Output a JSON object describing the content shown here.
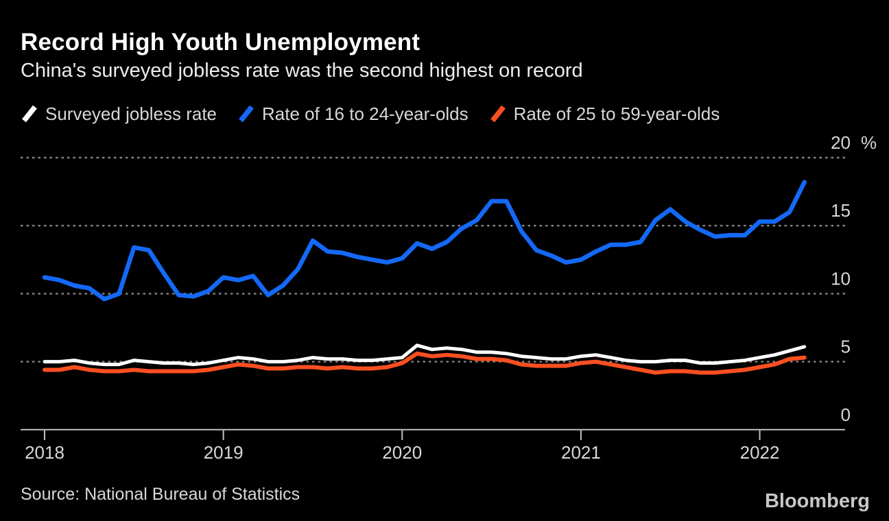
{
  "header": {
    "title": "Record High Youth Unemployment",
    "subtitle": "China's surveyed jobless rate was the second highest on record"
  },
  "legend": {
    "items": [
      {
        "label": "Surveyed jobless rate",
        "color": "#ffffff"
      },
      {
        "label": "Rate of 16 to 24-year-olds",
        "color": "#1469f6"
      },
      {
        "label": "Rate of 25 to 59-year-olds",
        "color": "#fa4f21"
      }
    ]
  },
  "chart_data": {
    "type": "line",
    "title": "Record High Youth Unemployment",
    "subtitle": "China's surveyed jobless rate was the second highest on record",
    "x_start": "2018-01",
    "x_end": "2022-04",
    "x_frequency": "monthly",
    "x_tick_labels": [
      "2018",
      "2019",
      "2020",
      "2021",
      "2022"
    ],
    "x_tick_month_index": [
      0,
      12,
      24,
      36,
      48
    ],
    "ylim": [
      0,
      20
    ],
    "y_ticks": [
      0,
      5,
      10,
      15,
      20
    ],
    "unit": "%",
    "grid": "horizontal-dotted",
    "legend_position": "top",
    "background": "#000000",
    "grid_color": "#858585",
    "axis_color": "#c3c3c3",
    "series": [
      {
        "name": "Surveyed jobless rate",
        "color": "#ffffff",
        "values": [
          5.0,
          5.0,
          5.1,
          4.9,
          4.8,
          4.8,
          5.1,
          5.0,
          4.9,
          4.9,
          4.8,
          4.9,
          5.1,
          5.3,
          5.2,
          5.0,
          5.0,
          5.1,
          5.3,
          5.2,
          5.2,
          5.1,
          5.1,
          5.2,
          5.3,
          6.2,
          5.9,
          6.0,
          5.9,
          5.7,
          5.7,
          5.6,
          5.4,
          5.3,
          5.2,
          5.2,
          5.4,
          5.5,
          5.3,
          5.1,
          5.0,
          5.0,
          5.1,
          5.1,
          4.9,
          4.9,
          5.0,
          5.1,
          5.3,
          5.5,
          5.8,
          6.1
        ]
      },
      {
        "name": "Rate of 16 to 24-year-olds",
        "color": "#1469f6",
        "values": [
          11.2,
          11.0,
          10.6,
          10.4,
          9.6,
          10.0,
          13.4,
          13.2,
          11.5,
          9.9,
          9.8,
          10.2,
          11.2,
          11.0,
          11.3,
          9.9,
          10.6,
          11.8,
          13.9,
          13.1,
          13.0,
          12.7,
          12.5,
          12.3,
          12.6,
          13.7,
          13.3,
          13.8,
          14.8,
          15.4,
          16.8,
          16.8,
          14.6,
          13.2,
          12.8,
          12.3,
          12.5,
          13.1,
          13.6,
          13.6,
          13.8,
          15.4,
          16.2,
          15.3,
          14.7,
          14.2,
          14.3,
          14.3,
          15.3,
          15.3,
          16.0,
          18.2
        ]
      },
      {
        "name": "Rate of 25 to 59-year-olds",
        "color": "#fa4f21",
        "values": [
          4.4,
          4.4,
          4.6,
          4.4,
          4.3,
          4.3,
          4.4,
          4.3,
          4.3,
          4.3,
          4.3,
          4.4,
          4.6,
          4.8,
          4.7,
          4.5,
          4.5,
          4.6,
          4.6,
          4.5,
          4.6,
          4.5,
          4.5,
          4.6,
          4.9,
          5.6,
          5.4,
          5.5,
          5.4,
          5.2,
          5.2,
          5.1,
          4.8,
          4.7,
          4.7,
          4.7,
          4.9,
          5.0,
          4.8,
          4.6,
          4.4,
          4.2,
          4.3,
          4.3,
          4.2,
          4.2,
          4.3,
          4.4,
          4.6,
          4.8,
          5.2,
          5.3
        ]
      }
    ]
  },
  "footer": {
    "source": "Source: National Bureau of Statistics",
    "brand": "Bloomberg"
  }
}
